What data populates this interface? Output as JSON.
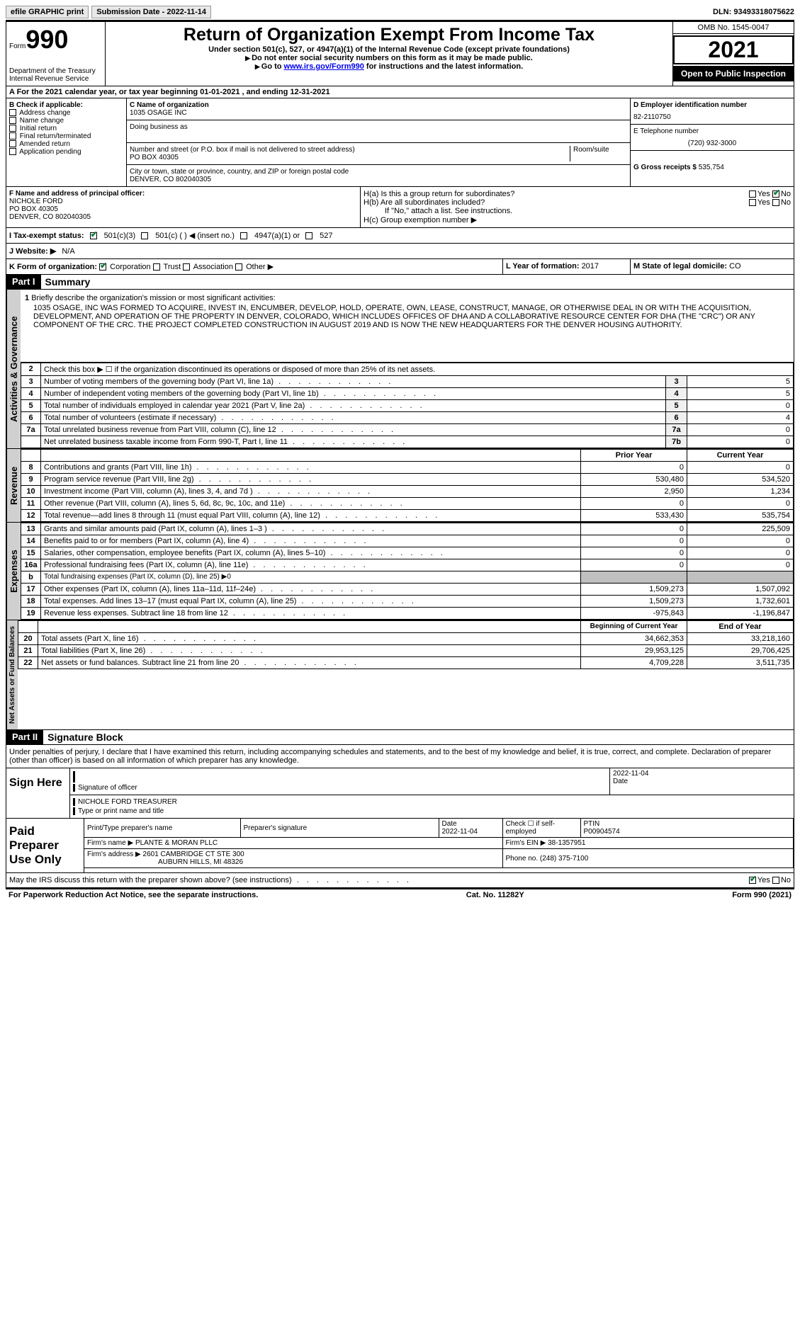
{
  "topbar": {
    "efile": "efile GRAPHIC print",
    "submission_label": "Submission Date - ",
    "submission_date": "2022-11-14",
    "dln_label": "DLN: ",
    "dln": "93493318075622"
  },
  "header": {
    "form_prefix": "Form",
    "form_number": "990",
    "dept": "Department of the Treasury\nInternal Revenue Service",
    "title": "Return of Organization Exempt From Income Tax",
    "subtitle": "Under section 501(c), 527, or 4947(a)(1) of the Internal Revenue Code (except private foundations)",
    "note1": "Do not enter social security numbers on this form as it may be made public.",
    "note2_prefix": "Go to ",
    "note2_link": "www.irs.gov/Form990",
    "note2_suffix": " for instructions and the latest information.",
    "omb": "OMB No. 1545-0047",
    "year": "2021",
    "open_public": "Open to Public Inspection"
  },
  "row_a": "A  For the 2021 calendar year, or tax year beginning 01-01-2021    , and ending 12-31-2021",
  "section_b": {
    "title": "B Check if applicable:",
    "items": [
      "Address change",
      "Name change",
      "Initial return",
      "Final return/terminated",
      "Amended return",
      "Application pending"
    ]
  },
  "section_c": {
    "name_label": "C Name of organization",
    "name": "1035 OSAGE INC",
    "dba_label": "Doing business as",
    "addr_label": "Number and street (or P.O. box if mail is not delivered to street address)",
    "addr": "PO BOX 40305",
    "room_label": "Room/suite",
    "city_label": "City or town, state or province, country, and ZIP or foreign postal code",
    "city": "DENVER, CO  802040305"
  },
  "section_d": {
    "ein_label": "D Employer identification number",
    "ein": "82-2110750",
    "tel_label": "E Telephone number",
    "tel": "(720) 932-3000",
    "gross_label": "G Gross receipts $ ",
    "gross": "535,754"
  },
  "section_f": {
    "label": "F  Name and address of principal officer:",
    "name": "NICHOLE FORD",
    "addr1": "PO BOX 40305",
    "addr2": "DENVER, CO  802040305"
  },
  "section_h": {
    "ha": "H(a)  Is this a group return for subordinates?",
    "hb": "H(b)  Are all subordinates included?",
    "hb_note": "If \"No,\" attach a list. See instructions.",
    "hc": "H(c)  Group exemption number ▶",
    "yes": "Yes",
    "no": "No"
  },
  "row_i": {
    "label": "I  Tax-exempt status:",
    "opt1": "501(c)(3)",
    "opt2": "501(c) (  ) ◀ (insert no.)",
    "opt3": "4947(a)(1) or",
    "opt4": "527"
  },
  "row_j": {
    "label": "J  Website: ▶",
    "val": "N/A"
  },
  "row_k": {
    "label": "K Form of organization:",
    "opts": [
      "Corporation",
      "Trust",
      "Association",
      "Other ▶"
    ],
    "l_label": "L Year of formation: ",
    "l_val": "2017",
    "m_label": "M State of legal domicile: ",
    "m_val": "CO"
  },
  "part1": {
    "label": "Part I",
    "title": "Summary"
  },
  "mission": {
    "num": "1",
    "label": "Briefly describe the organization's mission or most significant activities:",
    "text": "1035 OSAGE, INC WAS FORMED TO ACQUIRE, INVEST IN, ENCUMBER, DEVELOP, HOLD, OPERATE, OWN, LEASE, CONSTRUCT, MANAGE, OR OTHERWISE DEAL IN OR WITH THE ACQUISITION, DEVELOPMENT, AND OPERATION OF THE PROPERTY IN DENVER, COLORADO, WHICH INCLUDES OFFICES OF DHA AND A COLLABORATIVE RESOURCE CENTER FOR DHA (THE \"CRC\") OR ANY COMPONENT OF THE CRC. THE PROJECT COMPLETED CONSTRUCTION IN AUGUST 2019 AND IS NOW THE NEW HEADQUARTERS FOR THE DENVER HOUSING AUTHORITY."
  },
  "gov_lines": [
    {
      "n": "2",
      "t": "Check this box ▶ ☐  if the organization discontinued its operations or disposed of more than 25% of its net assets.",
      "k": "",
      "v": ""
    },
    {
      "n": "3",
      "t": "Number of voting members of the governing body (Part VI, line 1a)",
      "k": "3",
      "v": "5"
    },
    {
      "n": "4",
      "t": "Number of independent voting members of the governing body (Part VI, line 1b)",
      "k": "4",
      "v": "5"
    },
    {
      "n": "5",
      "t": "Total number of individuals employed in calendar year 2021 (Part V, line 2a)",
      "k": "5",
      "v": "0"
    },
    {
      "n": "6",
      "t": "Total number of volunteers (estimate if necessary)",
      "k": "6",
      "v": "4"
    },
    {
      "n": "7a",
      "t": "Total unrelated business revenue from Part VIII, column (C), line 12",
      "k": "7a",
      "v": "0"
    },
    {
      "n": "",
      "t": "Net unrelated business taxable income from Form 990-T, Part I, line 11",
      "k": "7b",
      "v": "0"
    }
  ],
  "col_headers": {
    "prior": "Prior Year",
    "current": "Current Year",
    "boy": "Beginning of Current Year",
    "eoy": "End of Year"
  },
  "revenue": [
    {
      "n": "8",
      "t": "Contributions and grants (Part VIII, line 1h)",
      "p": "0",
      "c": "0"
    },
    {
      "n": "9",
      "t": "Program service revenue (Part VIII, line 2g)",
      "p": "530,480",
      "c": "534,520"
    },
    {
      "n": "10",
      "t": "Investment income (Part VIII, column (A), lines 3, 4, and 7d )",
      "p": "2,950",
      "c": "1,234"
    },
    {
      "n": "11",
      "t": "Other revenue (Part VIII, column (A), lines 5, 6d, 8c, 9c, 10c, and 11e)",
      "p": "0",
      "c": "0"
    },
    {
      "n": "12",
      "t": "Total revenue—add lines 8 through 11 (must equal Part VIII, column (A), line 12)",
      "p": "533,430",
      "c": "535,754"
    }
  ],
  "expenses": [
    {
      "n": "13",
      "t": "Grants and similar amounts paid (Part IX, column (A), lines 1–3 )",
      "p": "0",
      "c": "225,509"
    },
    {
      "n": "14",
      "t": "Benefits paid to or for members (Part IX, column (A), line 4)",
      "p": "0",
      "c": "0"
    },
    {
      "n": "15",
      "t": "Salaries, other compensation, employee benefits (Part IX, column (A), lines 5–10)",
      "p": "0",
      "c": "0"
    },
    {
      "n": "16a",
      "t": "Professional fundraising fees (Part IX, column (A), line 11e)",
      "p": "0",
      "c": "0"
    },
    {
      "n": "b",
      "t": "Total fundraising expenses (Part IX, column (D), line 25) ▶0",
      "p": "grey",
      "c": "grey"
    },
    {
      "n": "17",
      "t": "Other expenses (Part IX, column (A), lines 11a–11d, 11f–24e)",
      "p": "1,509,273",
      "c": "1,507,092"
    },
    {
      "n": "18",
      "t": "Total expenses. Add lines 13–17 (must equal Part IX, column (A), line 25)",
      "p": "1,509,273",
      "c": "1,732,601"
    },
    {
      "n": "19",
      "t": "Revenue less expenses. Subtract line 18 from line 12",
      "p": "-975,843",
      "c": "-1,196,847"
    }
  ],
  "netassets": [
    {
      "n": "20",
      "t": "Total assets (Part X, line 16)",
      "p": "34,662,353",
      "c": "33,218,160"
    },
    {
      "n": "21",
      "t": "Total liabilities (Part X, line 26)",
      "p": "29,953,125",
      "c": "29,706,425"
    },
    {
      "n": "22",
      "t": "Net assets or fund balances. Subtract line 21 from line 20",
      "p": "4,709,228",
      "c": "3,511,735"
    }
  ],
  "vert": {
    "gov": "Activities & Governance",
    "rev": "Revenue",
    "exp": "Expenses",
    "na": "Net Assets or Fund Balances"
  },
  "part2": {
    "label": "Part II",
    "title": "Signature Block"
  },
  "sig_text": "Under penalties of perjury, I declare that I have examined this return, including accompanying schedules and statements, and to the best of my knowledge and belief, it is true, correct, and complete. Declaration of preparer (other than officer) is based on all information of which preparer has any knowledge.",
  "sign": {
    "lbl": "Sign Here",
    "sig_of": "Signature of officer",
    "date": "2022-11-04",
    "date_lbl": "Date",
    "name": "NICHOLE FORD  TREASURER",
    "name_lbl": "Type or print name and title"
  },
  "preparer": {
    "lbl": "Paid Preparer Use Only",
    "h1": "Print/Type preparer's name",
    "h2": "Preparer's signature",
    "h3": "Date",
    "h3v": "2022-11-04",
    "h4": "Check ☐ if self-employed",
    "h5": "PTIN",
    "h5v": "P00904574",
    "firm_lbl": "Firm's name    ▶ ",
    "firm": "PLANTE & MORAN PLLC",
    "ein_lbl": "Firm's EIN ▶ ",
    "ein": "38-1357951",
    "addr_lbl": "Firm's address ▶ ",
    "addr1": "2601 CAMBRIDGE CT STE 300",
    "addr2": "AUBURN HILLS, MI  48326",
    "phone_lbl": "Phone no. ",
    "phone": "(248) 375-7100"
  },
  "footer": {
    "q": "May the IRS discuss this return with the preparer shown above? (see instructions)",
    "yes": "Yes",
    "no": "No",
    "pra": "For Paperwork Reduction Act Notice, see the separate instructions.",
    "cat": "Cat. No. 11282Y",
    "form": "Form 990 (2021)"
  }
}
